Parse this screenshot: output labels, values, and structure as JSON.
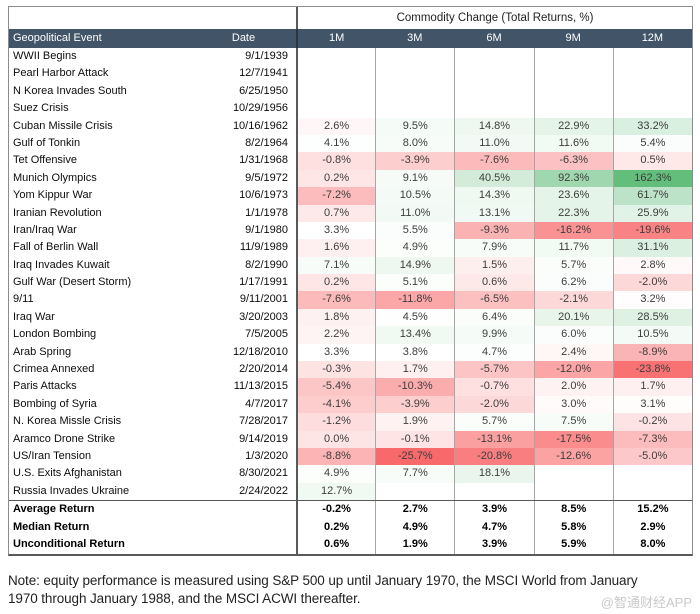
{
  "chart_data": {
    "type": "heatmap",
    "title": "Commodity Change (Total Returns, %)",
    "row_header": "Geopolitical Event",
    "date_header": "Date",
    "columns": [
      "1M",
      "3M",
      "6M",
      "9M",
      "12M"
    ],
    "value_format": "percent_1dp",
    "rows": [
      {
        "event": "WWII Begins",
        "date": "9/1/1939",
        "values": [
          null,
          null,
          null,
          null,
          null
        ]
      },
      {
        "event": "Pearl Harbor Attack",
        "date": "12/7/1941",
        "values": [
          null,
          null,
          null,
          null,
          null
        ]
      },
      {
        "event": "N Korea Invades South",
        "date": "6/25/1950",
        "values": [
          null,
          null,
          null,
          null,
          null
        ]
      },
      {
        "event": "Suez Crisis",
        "date": "10/29/1956",
        "values": [
          null,
          null,
          null,
          null,
          null
        ]
      },
      {
        "event": "Cuban Missile Crisis",
        "date": "10/16/1962",
        "values": [
          2.6,
          9.5,
          14.8,
          22.9,
          33.2
        ]
      },
      {
        "event": "Gulf of Tonkin",
        "date": "8/2/1964",
        "values": [
          4.1,
          8.0,
          11.0,
          11.6,
          5.4
        ]
      },
      {
        "event": "Tet Offensive",
        "date": "1/31/1968",
        "values": [
          -0.8,
          -3.9,
          -7.6,
          -6.3,
          0.5
        ]
      },
      {
        "event": "Munich Olympics",
        "date": "9/5/1972",
        "values": [
          0.2,
          9.1,
          40.5,
          92.3,
          162.3
        ]
      },
      {
        "event": "Yom Kippur War",
        "date": "10/6/1973",
        "values": [
          -7.2,
          10.5,
          14.3,
          23.6,
          61.7
        ]
      },
      {
        "event": "Iranian Revolution",
        "date": "1/1/1978",
        "values": [
          0.7,
          11.0,
          13.1,
          22.3,
          25.9
        ]
      },
      {
        "event": "Iran/Iraq War",
        "date": "9/1/1980",
        "values": [
          3.3,
          5.5,
          -9.3,
          -16.2,
          -19.6
        ]
      },
      {
        "event": "Fall of Berlin Wall",
        "date": "11/9/1989",
        "values": [
          1.6,
          4.9,
          7.9,
          11.7,
          31.1
        ]
      },
      {
        "event": "Iraq Invades Kuwait",
        "date": "8/2/1990",
        "values": [
          7.1,
          14.9,
          1.5,
          5.7,
          2.8
        ]
      },
      {
        "event": "Gulf War (Desert Storm)",
        "date": "1/17/1991",
        "values": [
          0.2,
          5.1,
          0.6,
          6.2,
          -2.0
        ]
      },
      {
        "event": "9/11",
        "date": "9/11/2001",
        "values": [
          -7.6,
          -11.8,
          -6.5,
          -2.1,
          3.2
        ]
      },
      {
        "event": "Iraq War",
        "date": "3/20/2003",
        "values": [
          1.8,
          4.5,
          6.4,
          20.1,
          28.5
        ]
      },
      {
        "event": "London Bombing",
        "date": "7/5/2005",
        "values": [
          2.2,
          13.4,
          9.9,
          6.0,
          10.5
        ]
      },
      {
        "event": "Arab Spring",
        "date": "12/18/2010",
        "values": [
          3.3,
          3.8,
          4.7,
          2.4,
          -8.9
        ]
      },
      {
        "event": "Crimea Annexed",
        "date": "2/20/2014",
        "values": [
          -0.3,
          1.7,
          -5.7,
          -12.0,
          -23.8
        ]
      },
      {
        "event": "Paris Attacks",
        "date": "11/13/2015",
        "values": [
          -5.4,
          -10.3,
          -0.7,
          2.0,
          1.7
        ]
      },
      {
        "event": "Bombing of Syria",
        "date": "4/7/2017",
        "values": [
          -4.1,
          -3.9,
          -2.0,
          3.0,
          3.1
        ]
      },
      {
        "event": "N. Korea Missle Crisis",
        "date": "7/28/2017",
        "values": [
          -1.2,
          1.9,
          5.7,
          7.5,
          -0.2
        ]
      },
      {
        "event": "Aramco Drone Strike",
        "date": "9/14/2019",
        "values": [
          0.0,
          -0.1,
          -13.1,
          -17.5,
          -7.3
        ]
      },
      {
        "event": "US/Iran Tension",
        "date": "1/3/2020",
        "values": [
          -8.8,
          -25.7,
          -20.8,
          -12.6,
          -5.0
        ]
      },
      {
        "event": "U.S. Exits Afghanistan",
        "date": "8/30/2021",
        "values": [
          4.9,
          7.7,
          18.1,
          null,
          null
        ]
      },
      {
        "event": "Russia Invades Ukraine",
        "date": "2/24/2022",
        "values": [
          12.7,
          null,
          null,
          null,
          null
        ]
      }
    ],
    "summary_rows": [
      {
        "label": "Average Return",
        "values": [
          -0.2,
          2.7,
          3.9,
          8.5,
          15.2
        ]
      },
      {
        "label": "Median Return",
        "values": [
          0.2,
          4.9,
          4.7,
          5.8,
          2.9
        ]
      },
      {
        "label": "Unconditional Return",
        "values": [
          0.6,
          1.9,
          3.9,
          5.9,
          8.0
        ]
      }
    ],
    "color_scale": {
      "min": -25.7,
      "midpoint": 3.3,
      "max": 162.3,
      "min_color": "#F8696B",
      "mid_color": "#FFFFFF",
      "max_color": "#63BE7B"
    },
    "legend_position": "none",
    "grid": true
  },
  "note": "Note: equity performance is measured using S&P 500 up until January 1970, the MSCI World from January 1970 through January 1988, and the MSCI ACWI thereafter.",
  "watermark": "@智通财经APP",
  "colors": {
    "header_bg": "#425468",
    "header_text": "#FFFFFF",
    "grid_line": "#A6A6A6",
    "heavy_line": "#595959",
    "outer_border": "#8C8C8C",
    "watermark_color": "#C9C9C9"
  }
}
